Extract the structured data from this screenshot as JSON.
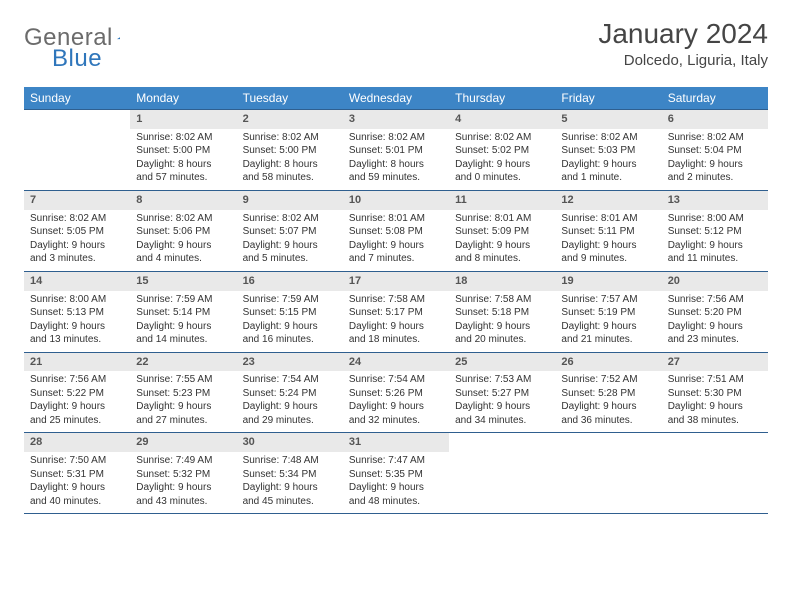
{
  "logo": {
    "text1": "General",
    "text2": "Blue"
  },
  "title": "January 2024",
  "location": "Dolcedo, Liguria, Italy",
  "dow": [
    "Sunday",
    "Monday",
    "Tuesday",
    "Wednesday",
    "Thursday",
    "Friday",
    "Saturday"
  ],
  "colors": {
    "header_bg": "#3d85c6",
    "header_text": "#ffffff",
    "rule": "#2f5f8f",
    "daynum_bg": "#e9e9e9",
    "logo_gray": "#6b6b6b",
    "logo_blue": "#2f76bb"
  },
  "weeks": [
    [
      {
        "n": "",
        "sr": "",
        "ss": "",
        "dl": ""
      },
      {
        "n": "1",
        "sr": "Sunrise: 8:02 AM",
        "ss": "Sunset: 5:00 PM",
        "dl": "Daylight: 8 hours and 57 minutes."
      },
      {
        "n": "2",
        "sr": "Sunrise: 8:02 AM",
        "ss": "Sunset: 5:00 PM",
        "dl": "Daylight: 8 hours and 58 minutes."
      },
      {
        "n": "3",
        "sr": "Sunrise: 8:02 AM",
        "ss": "Sunset: 5:01 PM",
        "dl": "Daylight: 8 hours and 59 minutes."
      },
      {
        "n": "4",
        "sr": "Sunrise: 8:02 AM",
        "ss": "Sunset: 5:02 PM",
        "dl": "Daylight: 9 hours and 0 minutes."
      },
      {
        "n": "5",
        "sr": "Sunrise: 8:02 AM",
        "ss": "Sunset: 5:03 PM",
        "dl": "Daylight: 9 hours and 1 minute."
      },
      {
        "n": "6",
        "sr": "Sunrise: 8:02 AM",
        "ss": "Sunset: 5:04 PM",
        "dl": "Daylight: 9 hours and 2 minutes."
      }
    ],
    [
      {
        "n": "7",
        "sr": "Sunrise: 8:02 AM",
        "ss": "Sunset: 5:05 PM",
        "dl": "Daylight: 9 hours and 3 minutes."
      },
      {
        "n": "8",
        "sr": "Sunrise: 8:02 AM",
        "ss": "Sunset: 5:06 PM",
        "dl": "Daylight: 9 hours and 4 minutes."
      },
      {
        "n": "9",
        "sr": "Sunrise: 8:02 AM",
        "ss": "Sunset: 5:07 PM",
        "dl": "Daylight: 9 hours and 5 minutes."
      },
      {
        "n": "10",
        "sr": "Sunrise: 8:01 AM",
        "ss": "Sunset: 5:08 PM",
        "dl": "Daylight: 9 hours and 7 minutes."
      },
      {
        "n": "11",
        "sr": "Sunrise: 8:01 AM",
        "ss": "Sunset: 5:09 PM",
        "dl": "Daylight: 9 hours and 8 minutes."
      },
      {
        "n": "12",
        "sr": "Sunrise: 8:01 AM",
        "ss": "Sunset: 5:11 PM",
        "dl": "Daylight: 9 hours and 9 minutes."
      },
      {
        "n": "13",
        "sr": "Sunrise: 8:00 AM",
        "ss": "Sunset: 5:12 PM",
        "dl": "Daylight: 9 hours and 11 minutes."
      }
    ],
    [
      {
        "n": "14",
        "sr": "Sunrise: 8:00 AM",
        "ss": "Sunset: 5:13 PM",
        "dl": "Daylight: 9 hours and 13 minutes."
      },
      {
        "n": "15",
        "sr": "Sunrise: 7:59 AM",
        "ss": "Sunset: 5:14 PM",
        "dl": "Daylight: 9 hours and 14 minutes."
      },
      {
        "n": "16",
        "sr": "Sunrise: 7:59 AM",
        "ss": "Sunset: 5:15 PM",
        "dl": "Daylight: 9 hours and 16 minutes."
      },
      {
        "n": "17",
        "sr": "Sunrise: 7:58 AM",
        "ss": "Sunset: 5:17 PM",
        "dl": "Daylight: 9 hours and 18 minutes."
      },
      {
        "n": "18",
        "sr": "Sunrise: 7:58 AM",
        "ss": "Sunset: 5:18 PM",
        "dl": "Daylight: 9 hours and 20 minutes."
      },
      {
        "n": "19",
        "sr": "Sunrise: 7:57 AM",
        "ss": "Sunset: 5:19 PM",
        "dl": "Daylight: 9 hours and 21 minutes."
      },
      {
        "n": "20",
        "sr": "Sunrise: 7:56 AM",
        "ss": "Sunset: 5:20 PM",
        "dl": "Daylight: 9 hours and 23 minutes."
      }
    ],
    [
      {
        "n": "21",
        "sr": "Sunrise: 7:56 AM",
        "ss": "Sunset: 5:22 PM",
        "dl": "Daylight: 9 hours and 25 minutes."
      },
      {
        "n": "22",
        "sr": "Sunrise: 7:55 AM",
        "ss": "Sunset: 5:23 PM",
        "dl": "Daylight: 9 hours and 27 minutes."
      },
      {
        "n": "23",
        "sr": "Sunrise: 7:54 AM",
        "ss": "Sunset: 5:24 PM",
        "dl": "Daylight: 9 hours and 29 minutes."
      },
      {
        "n": "24",
        "sr": "Sunrise: 7:54 AM",
        "ss": "Sunset: 5:26 PM",
        "dl": "Daylight: 9 hours and 32 minutes."
      },
      {
        "n": "25",
        "sr": "Sunrise: 7:53 AM",
        "ss": "Sunset: 5:27 PM",
        "dl": "Daylight: 9 hours and 34 minutes."
      },
      {
        "n": "26",
        "sr": "Sunrise: 7:52 AM",
        "ss": "Sunset: 5:28 PM",
        "dl": "Daylight: 9 hours and 36 minutes."
      },
      {
        "n": "27",
        "sr": "Sunrise: 7:51 AM",
        "ss": "Sunset: 5:30 PM",
        "dl": "Daylight: 9 hours and 38 minutes."
      }
    ],
    [
      {
        "n": "28",
        "sr": "Sunrise: 7:50 AM",
        "ss": "Sunset: 5:31 PM",
        "dl": "Daylight: 9 hours and 40 minutes."
      },
      {
        "n": "29",
        "sr": "Sunrise: 7:49 AM",
        "ss": "Sunset: 5:32 PM",
        "dl": "Daylight: 9 hours and 43 minutes."
      },
      {
        "n": "30",
        "sr": "Sunrise: 7:48 AM",
        "ss": "Sunset: 5:34 PM",
        "dl": "Daylight: 9 hours and 45 minutes."
      },
      {
        "n": "31",
        "sr": "Sunrise: 7:47 AM",
        "ss": "Sunset: 5:35 PM",
        "dl": "Daylight: 9 hours and 48 minutes."
      },
      {
        "n": "",
        "sr": "",
        "ss": "",
        "dl": ""
      },
      {
        "n": "",
        "sr": "",
        "ss": "",
        "dl": ""
      },
      {
        "n": "",
        "sr": "",
        "ss": "",
        "dl": ""
      }
    ]
  ]
}
